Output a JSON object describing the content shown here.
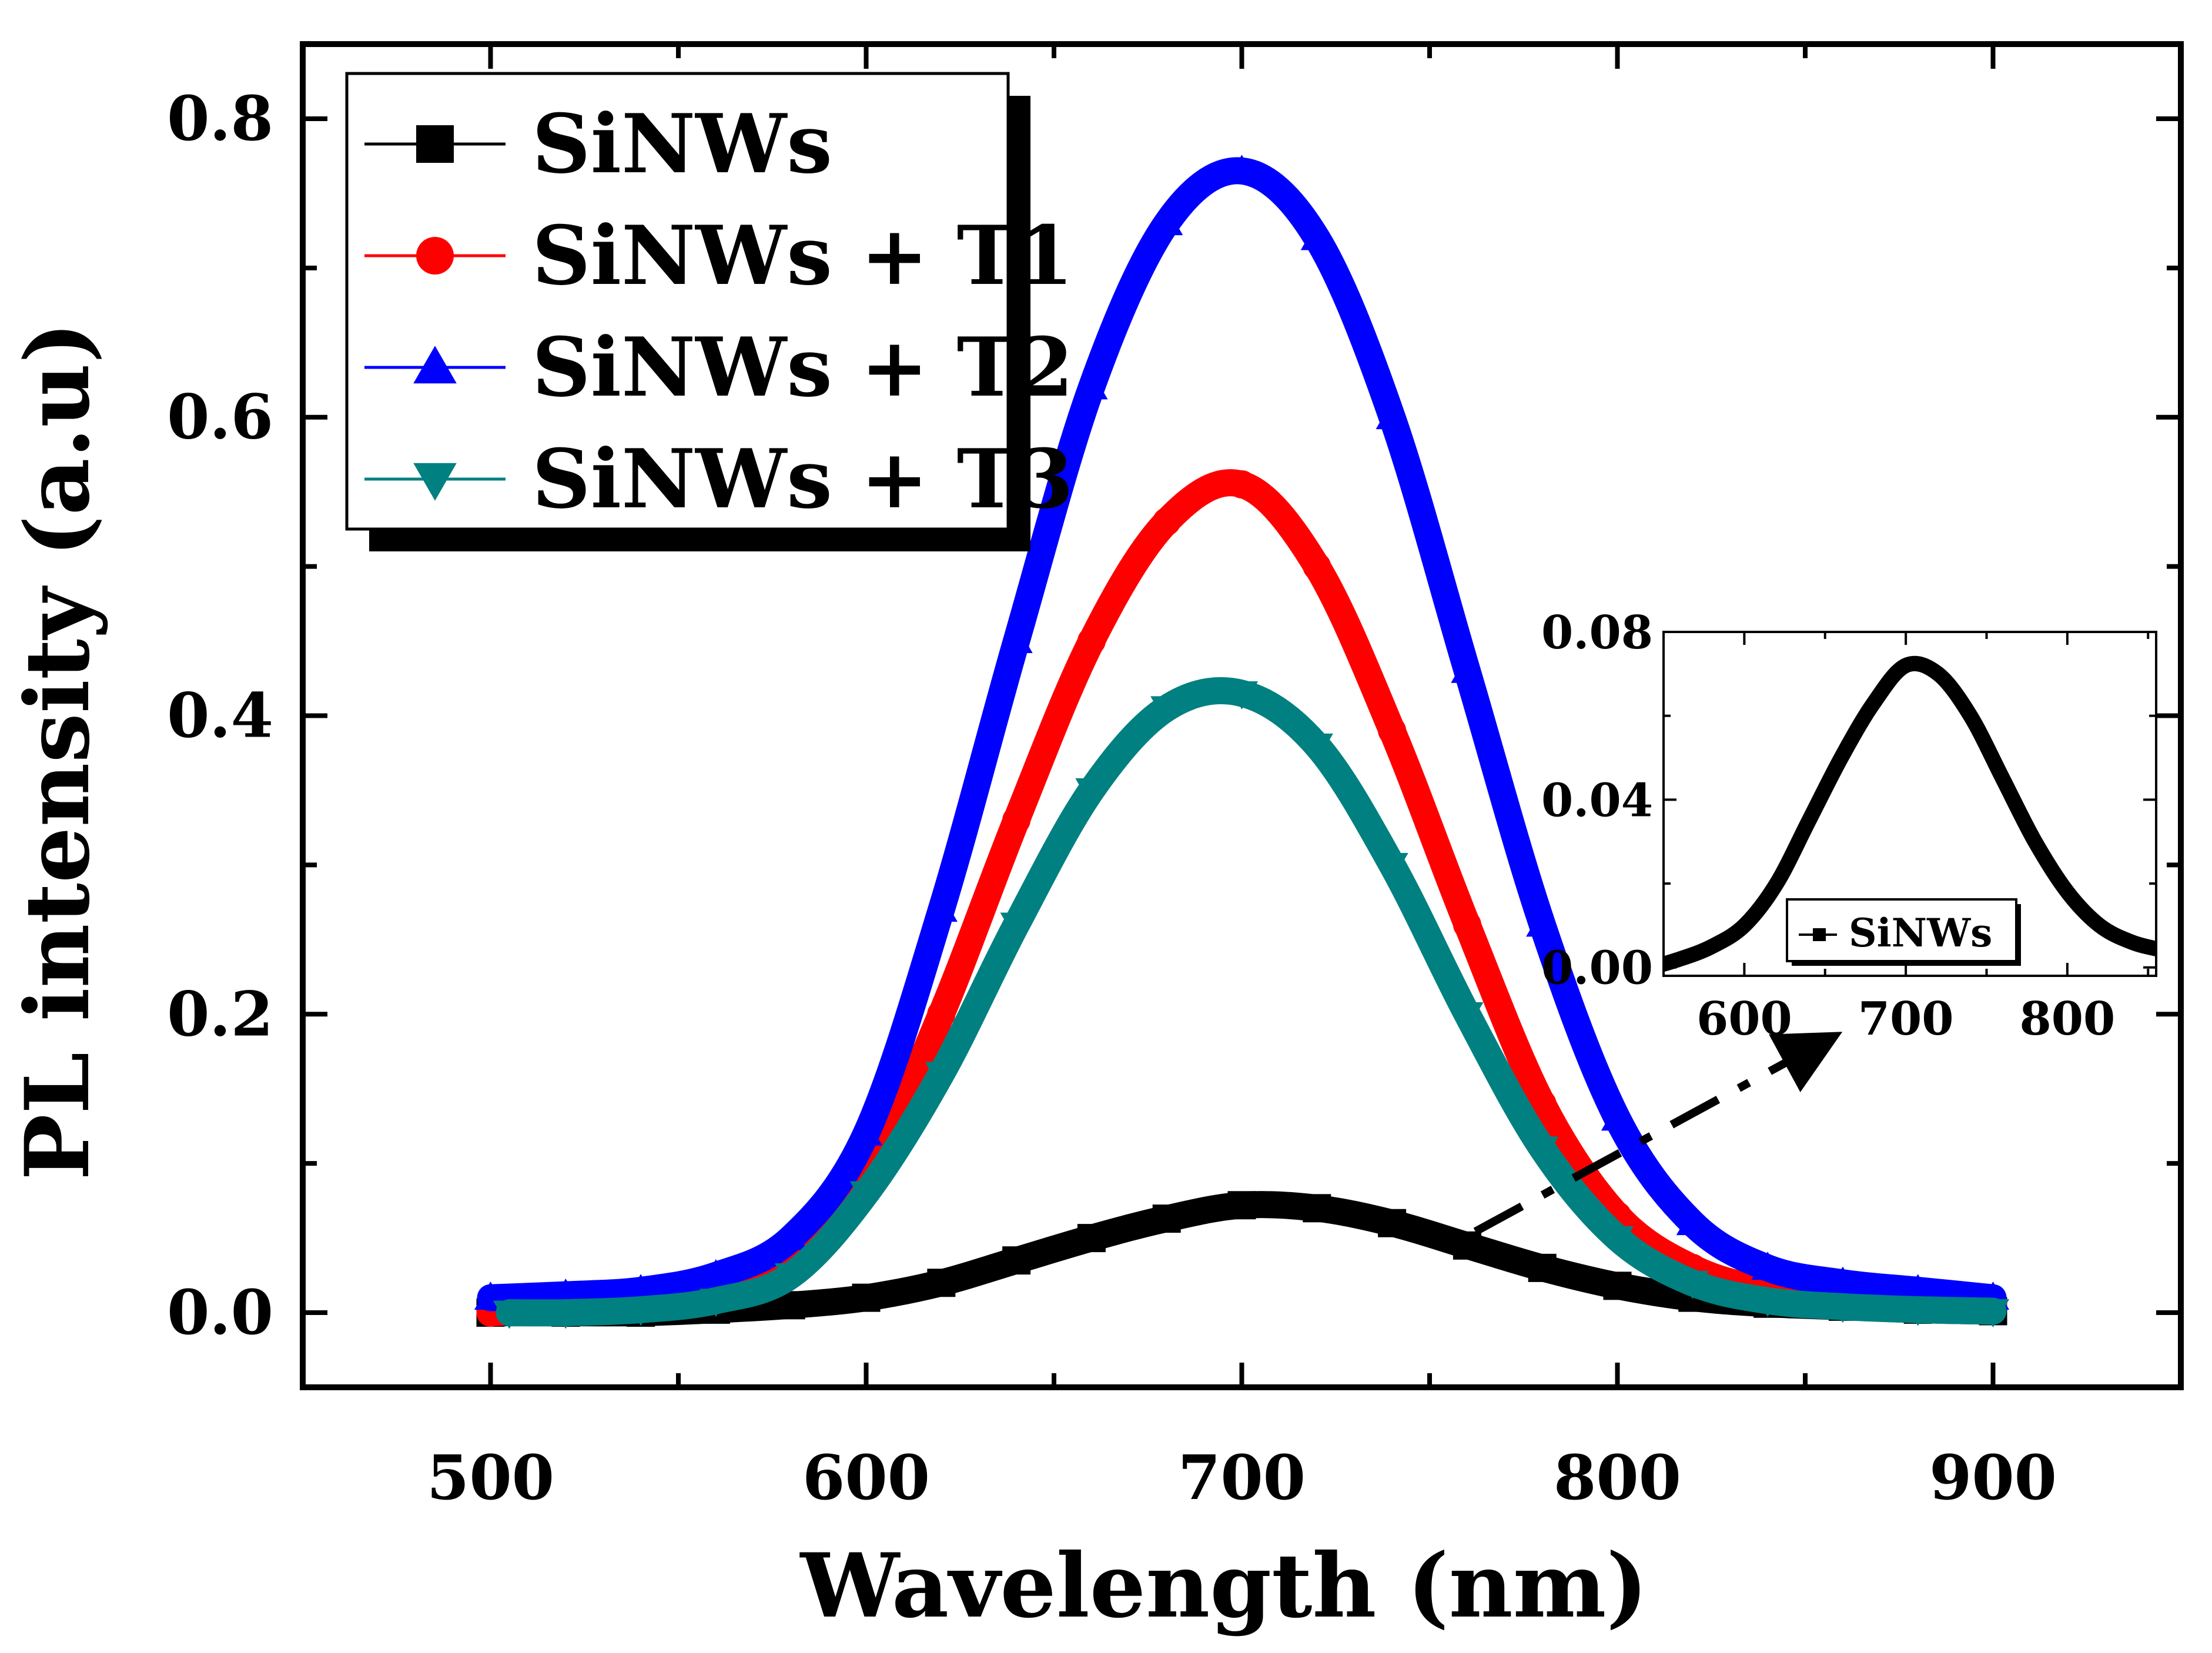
{
  "chart_data": {
    "type": "line",
    "xlabel": "Wavelength (nm)",
    "ylabel": "PL intensity (a.u)",
    "xlim": [
      450,
      950
    ],
    "ylim": [
      -0.05,
      0.85
    ],
    "xticks": [
      500,
      600,
      700,
      800,
      900
    ],
    "xtick_labels": [
      "500",
      "600",
      "700",
      "800",
      "900"
    ],
    "yticks": [
      0.0,
      0.2,
      0.4,
      0.6,
      0.8
    ],
    "ytick_labels": [
      "0.0",
      "0.2",
      "0.4",
      "0.6",
      "0.8"
    ],
    "legend_position": "top-left",
    "series": [
      {
        "name": "SiNWs",
        "color": "#000000",
        "marker": "square",
        "x": [
          500,
          520,
          540,
          560,
          580,
          600,
          620,
          640,
          660,
          680,
          700,
          720,
          740,
          760,
          780,
          800,
          820,
          840,
          860,
          880,
          900
        ],
        "y": [
          0.0,
          0.0,
          0.0,
          0.002,
          0.005,
          0.01,
          0.02,
          0.035,
          0.05,
          0.063,
          0.072,
          0.07,
          0.06,
          0.045,
          0.03,
          0.018,
          0.01,
          0.006,
          0.004,
          0.002,
          0.001
        ]
      },
      {
        "name": "SiNWs + T1",
        "color": "#ff0000",
        "marker": "circle",
        "x": [
          500,
          520,
          540,
          560,
          580,
          600,
          620,
          640,
          660,
          680,
          700,
          720,
          740,
          760,
          780,
          800,
          820,
          840,
          860,
          880,
          900
        ],
        "y": [
          0.0,
          0.002,
          0.005,
          0.012,
          0.03,
          0.09,
          0.2,
          0.33,
          0.45,
          0.53,
          0.555,
          0.5,
          0.39,
          0.26,
          0.14,
          0.065,
          0.03,
          0.015,
          0.01,
          0.007,
          0.005
        ]
      },
      {
        "name": "SiNWs + T2",
        "color": "#0000ff",
        "marker": "triangle-up",
        "x": [
          500,
          520,
          540,
          560,
          580,
          600,
          620,
          640,
          660,
          680,
          700,
          720,
          740,
          760,
          780,
          800,
          820,
          840,
          860,
          880,
          900
        ],
        "y": [
          0.01,
          0.012,
          0.015,
          0.025,
          0.05,
          0.12,
          0.27,
          0.45,
          0.62,
          0.73,
          0.765,
          0.72,
          0.6,
          0.43,
          0.26,
          0.13,
          0.06,
          0.03,
          0.02,
          0.015,
          0.01
        ]
      },
      {
        "name": "SiNWs + T3",
        "color": "#008080",
        "marker": "triangle-down",
        "x": [
          505,
          520,
          540,
          560,
          580,
          600,
          620,
          640,
          660,
          680,
          700,
          720,
          740,
          760,
          780,
          800,
          820,
          840,
          860,
          880,
          900
        ],
        "y": [
          0.0,
          0.0,
          0.002,
          0.008,
          0.025,
          0.08,
          0.16,
          0.26,
          0.35,
          0.405,
          0.415,
          0.38,
          0.3,
          0.2,
          0.11,
          0.05,
          0.02,
          0.008,
          0.004,
          0.002,
          0.001
        ]
      }
    ],
    "inset": {
      "xlim": [
        550,
        855
      ],
      "ylim": [
        -0.002,
        0.08
      ],
      "xticks": [
        600,
        700,
        800
      ],
      "xtick_labels": [
        "600",
        "700",
        "800"
      ],
      "yticks": [
        0.0,
        0.04,
        0.08
      ],
      "ytick_labels": [
        "0.00",
        "0.04",
        "0.08"
      ],
      "legend_position": "bottom-right",
      "series_name": "SiNWs",
      "color": "#000000"
    }
  }
}
